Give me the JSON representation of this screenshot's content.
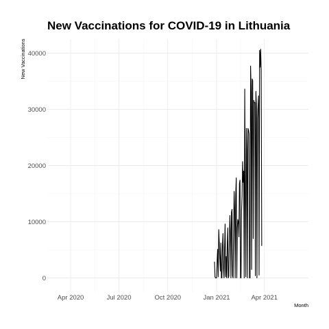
{
  "chart_data": {
    "type": "line",
    "title": "New Vaccinations for COVID-19 in Lithuania",
    "xlabel": "Month",
    "ylabel": "New Vaccinations",
    "xlim": [
      "2020-02-17",
      "2021-06-23"
    ],
    "ylim": [
      -2500,
      42500
    ],
    "x_ticks": [
      {
        "date": "2020-04-01",
        "label": "Apr 2020"
      },
      {
        "date": "2020-07-01",
        "label": "Jul 2020"
      },
      {
        "date": "2020-10-01",
        "label": "Oct 2020"
      },
      {
        "date": "2021-01-01",
        "label": "Jan 2021"
      },
      {
        "date": "2021-04-01",
        "label": "Apr 2021"
      }
    ],
    "y_ticks": [
      0,
      10000,
      20000,
      30000,
      40000
    ],
    "y_tick_labels": [
      "0",
      "10000",
      "20000",
      "30000",
      "40000"
    ],
    "grid": true,
    "series": [
      {
        "color": "#000000",
        "points": [
          [
            "2020-12-28",
            2900
          ],
          [
            "2020-12-29",
            200
          ],
          [
            "2020-12-30",
            0
          ],
          [
            "2020-12-31",
            0
          ],
          [
            "2021-01-01",
            0
          ],
          [
            "2021-01-02",
            3000
          ],
          [
            "2021-01-03",
            5100
          ],
          [
            "2021-01-04",
            200
          ],
          [
            "2021-01-05",
            8600
          ],
          [
            "2021-01-06",
            6300
          ],
          [
            "2021-01-07",
            3500
          ],
          [
            "2021-01-08",
            1200
          ],
          [
            "2021-01-09",
            6200
          ],
          [
            "2021-01-10",
            0
          ],
          [
            "2021-01-11",
            0
          ],
          [
            "2021-01-12",
            5600
          ],
          [
            "2021-01-13",
            7900
          ],
          [
            "2021-01-14",
            1500
          ],
          [
            "2021-01-15",
            0
          ],
          [
            "2021-01-16",
            5500
          ],
          [
            "2021-01-17",
            9600
          ],
          [
            "2021-01-18",
            200
          ],
          [
            "2021-01-19",
            3800
          ],
          [
            "2021-01-20",
            0
          ],
          [
            "2021-01-21",
            5700
          ],
          [
            "2021-01-22",
            8900
          ],
          [
            "2021-01-23",
            0
          ],
          [
            "2021-01-24",
            300
          ],
          [
            "2021-01-25",
            6400
          ],
          [
            "2021-01-26",
            11100
          ],
          [
            "2021-01-27",
            7800
          ],
          [
            "2021-01-28",
            0
          ],
          [
            "2021-01-29",
            11700
          ],
          [
            "2021-01-30",
            12200
          ],
          [
            "2021-01-31",
            400
          ],
          [
            "2021-02-01",
            0
          ],
          [
            "2021-02-02",
            8200
          ],
          [
            "2021-02-03",
            15400
          ],
          [
            "2021-02-04",
            12000
          ],
          [
            "2021-02-05",
            0
          ],
          [
            "2021-02-06",
            14800
          ],
          [
            "2021-02-07",
            17800
          ],
          [
            "2021-02-08",
            0
          ],
          [
            "2021-02-09",
            8900
          ],
          [
            "2021-02-10",
            10400
          ],
          [
            "2021-02-11",
            10000
          ],
          [
            "2021-02-12",
            7300
          ],
          [
            "2021-02-13",
            16800
          ],
          [
            "2021-02-14",
            17400
          ],
          [
            "2021-02-15",
            0
          ],
          [
            "2021-02-16",
            0
          ],
          [
            "2021-02-17",
            12000
          ],
          [
            "2021-02-18",
            14700
          ],
          [
            "2021-02-19",
            20700
          ],
          [
            "2021-02-20",
            17000
          ],
          [
            "2021-02-21",
            19000
          ],
          [
            "2021-02-22",
            0
          ],
          [
            "2021-02-23",
            33600
          ],
          [
            "2021-02-24",
            15100
          ],
          [
            "2021-02-25",
            200
          ],
          [
            "2021-02-26",
            26600
          ],
          [
            "2021-02-27",
            22900
          ],
          [
            "2021-02-28",
            0
          ],
          [
            "2021-03-01",
            26600
          ],
          [
            "2021-03-02",
            26300
          ],
          [
            "2021-03-03",
            25600
          ],
          [
            "2021-03-04",
            0
          ],
          [
            "2021-03-05",
            0
          ],
          [
            "2021-03-06",
            37700
          ],
          [
            "2021-03-07",
            33200
          ],
          [
            "2021-03-08",
            1500
          ],
          [
            "2021-03-09",
            35400
          ],
          [
            "2021-03-10",
            35100
          ],
          [
            "2021-03-11",
            7000
          ],
          [
            "2021-03-12",
            31600
          ],
          [
            "2021-03-13",
            31200
          ],
          [
            "2021-03-14",
            31200
          ],
          [
            "2021-03-15",
            400
          ],
          [
            "2021-03-16",
            33200
          ],
          [
            "2021-03-17",
            30800
          ],
          [
            "2021-03-18",
            0
          ],
          [
            "2021-03-19",
            28200
          ],
          [
            "2021-03-20",
            30500
          ],
          [
            "2021-03-21",
            32400
          ],
          [
            "2021-03-22",
            500
          ],
          [
            "2021-03-23",
            40500
          ],
          [
            "2021-03-24",
            37500
          ],
          [
            "2021-03-25",
            40700
          ],
          [
            "2021-03-26",
            36900
          ],
          [
            "2021-03-27",
            5700
          ]
        ]
      }
    ]
  }
}
